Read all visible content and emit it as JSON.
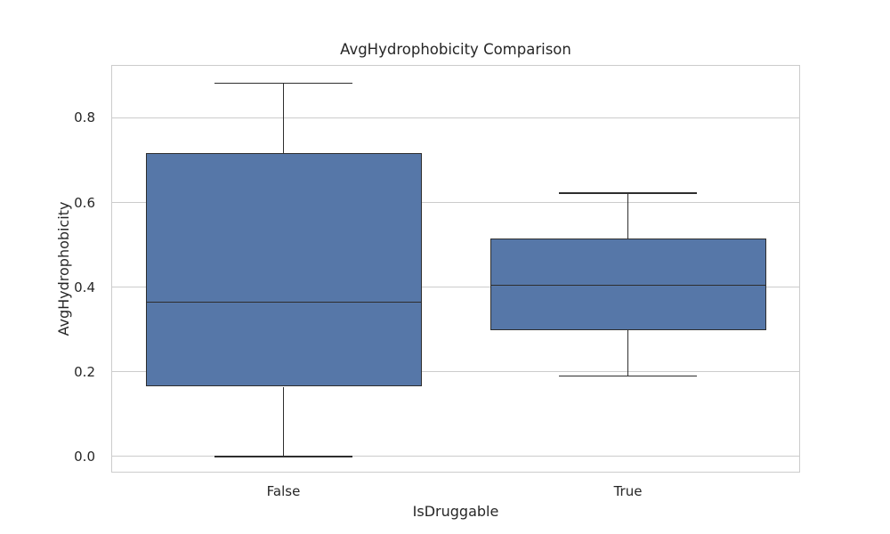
{
  "chart_data": {
    "type": "box",
    "title": "AvgHydrophobicity Comparison",
    "xlabel": "IsDruggable",
    "ylabel": "AvgHydrophobicity",
    "categories": [
      "False",
      "True"
    ],
    "series": [
      {
        "name": "False",
        "whisker_low": 0.0,
        "q1": 0.165,
        "median": 0.365,
        "q3": 0.717,
        "whisker_high": 0.882,
        "outliers": []
      },
      {
        "name": "True",
        "whisker_low": 0.19,
        "q1": 0.298,
        "median": 0.405,
        "q3": 0.515,
        "whisker_high": 0.622,
        "outliers": []
      }
    ],
    "yticks": [
      "0.0",
      "0.2",
      "0.4",
      "0.6",
      "0.8"
    ],
    "ytick_values": [
      0.0,
      0.2,
      0.4,
      0.6,
      0.8
    ],
    "ylim": [
      -0.038,
      0.925
    ],
    "grid": true,
    "legend_position": "none",
    "colors": {
      "box_fill": "#5677a8",
      "box_edge": "#2e2e2e",
      "median": "#2e2e2e",
      "whisker": "#2e2e2e",
      "grid": "#cccccc",
      "spine": "#cccccc",
      "text": "#262626",
      "background": "#ffffff"
    }
  }
}
